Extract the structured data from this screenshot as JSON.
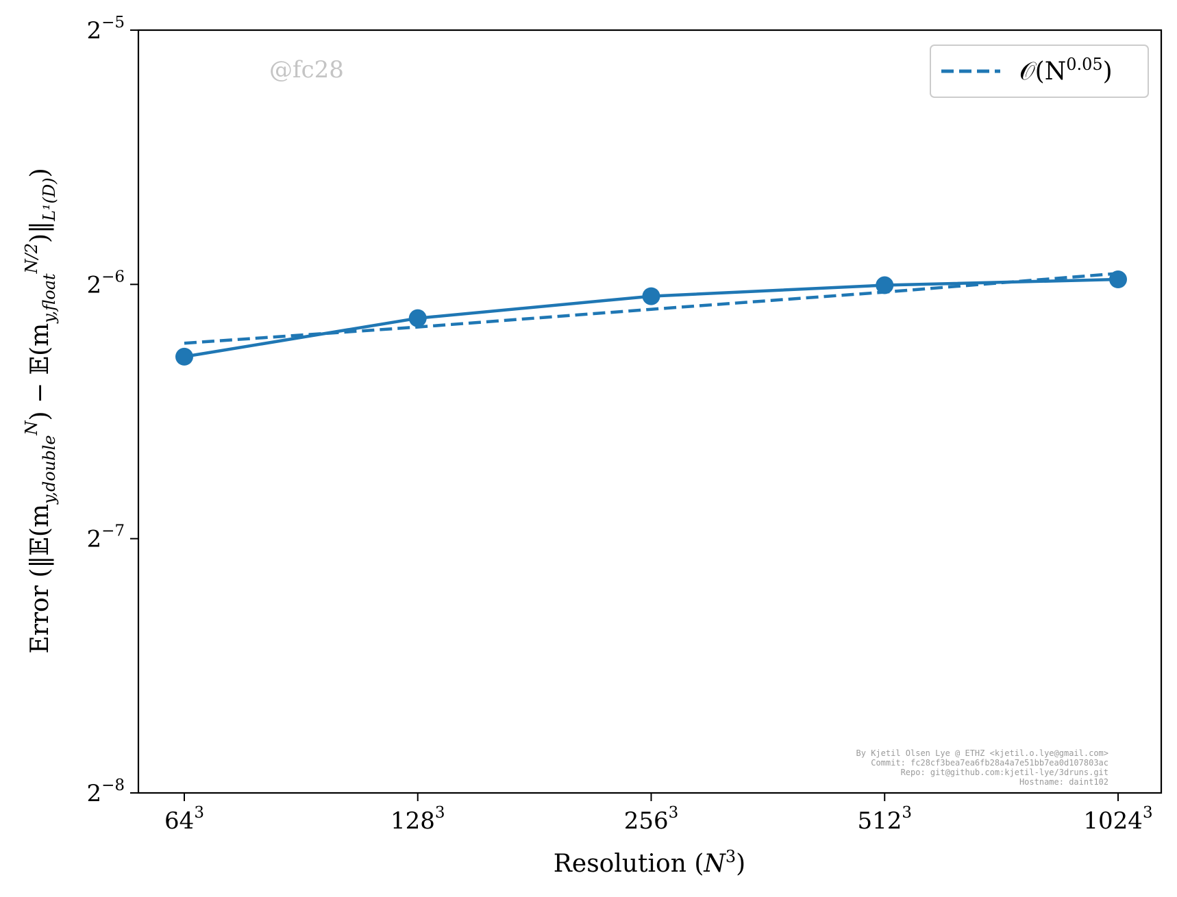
{
  "chart_data": {
    "type": "line",
    "xscale": "log2",
    "yscale": "log2",
    "x": [
      64,
      128,
      256,
      512,
      1024
    ],
    "x_tick_labels": [
      {
        "base": "64",
        "exp": "3"
      },
      {
        "base": "128",
        "exp": "3"
      },
      {
        "base": "256",
        "exp": "3"
      },
      {
        "base": "512",
        "exp": "3"
      },
      {
        "base": "1024",
        "exp": "3"
      }
    ],
    "y_ticks": [
      {
        "value": 0.03125,
        "base": "2",
        "exp": "−5"
      },
      {
        "value": 0.015625,
        "base": "2",
        "exp": "−6"
      },
      {
        "value": 0.0078125,
        "base": "2",
        "exp": "−7"
      },
      {
        "value": 0.00390625,
        "base": "2",
        "exp": "−8"
      }
    ],
    "ylim": [
      0.00390625,
      0.03125
    ],
    "xlabel": "Resolution (N³)",
    "ylabel": "Error (||𝔼(m_{y,double}^N) − 𝔼(m_{y,float}^{N/2})||_{L¹(D)})",
    "series": [
      {
        "style": "solid-markers",
        "color": "#1f77b4",
        "values": [
          0.01283,
          0.01425,
          0.01513,
          0.01559,
          0.01584
        ]
      },
      {
        "name": "𝒪(N^0.05)",
        "style": "dashed",
        "color": "#1f77b4",
        "values": [
          0.01331,
          0.01391,
          0.0146,
          0.0153,
          0.0161
        ]
      }
    ],
    "legend": {
      "position": "top-right",
      "entries": [
        {
          "label": "𝒪(N",
          "sup": "0.05",
          "tail": ")"
        }
      ]
    },
    "grid": false
  },
  "watermark": "@fc28",
  "credits": [
    "By Kjetil Olsen Lye @ ETHZ <kjetil.o.lye@gmail.com>",
    "Commit: fc28cf3bea7ea6fb28a4a7e51bb7ea0d107803ac",
    "Repo: git@github.com:kjetil-lye/3druns.git",
    "Hostname: daint102"
  ],
  "labels": {
    "x_axis": "Resolution (",
    "x_axis_var": "N",
    "x_axis_sup": "3",
    "x_axis_tail": ")",
    "y_axis": "Error (‖𝔼(m",
    "y_axis_sub1": "y,double",
    "y_axis_sup1": "N",
    "y_axis_mid": ") − 𝔼(m",
    "y_axis_sub2": "y,float",
    "y_axis_sup2": "N/2",
    "y_axis_tail": ")‖",
    "y_axis_sub3": "L¹(D)",
    "y_axis_end": ")"
  }
}
